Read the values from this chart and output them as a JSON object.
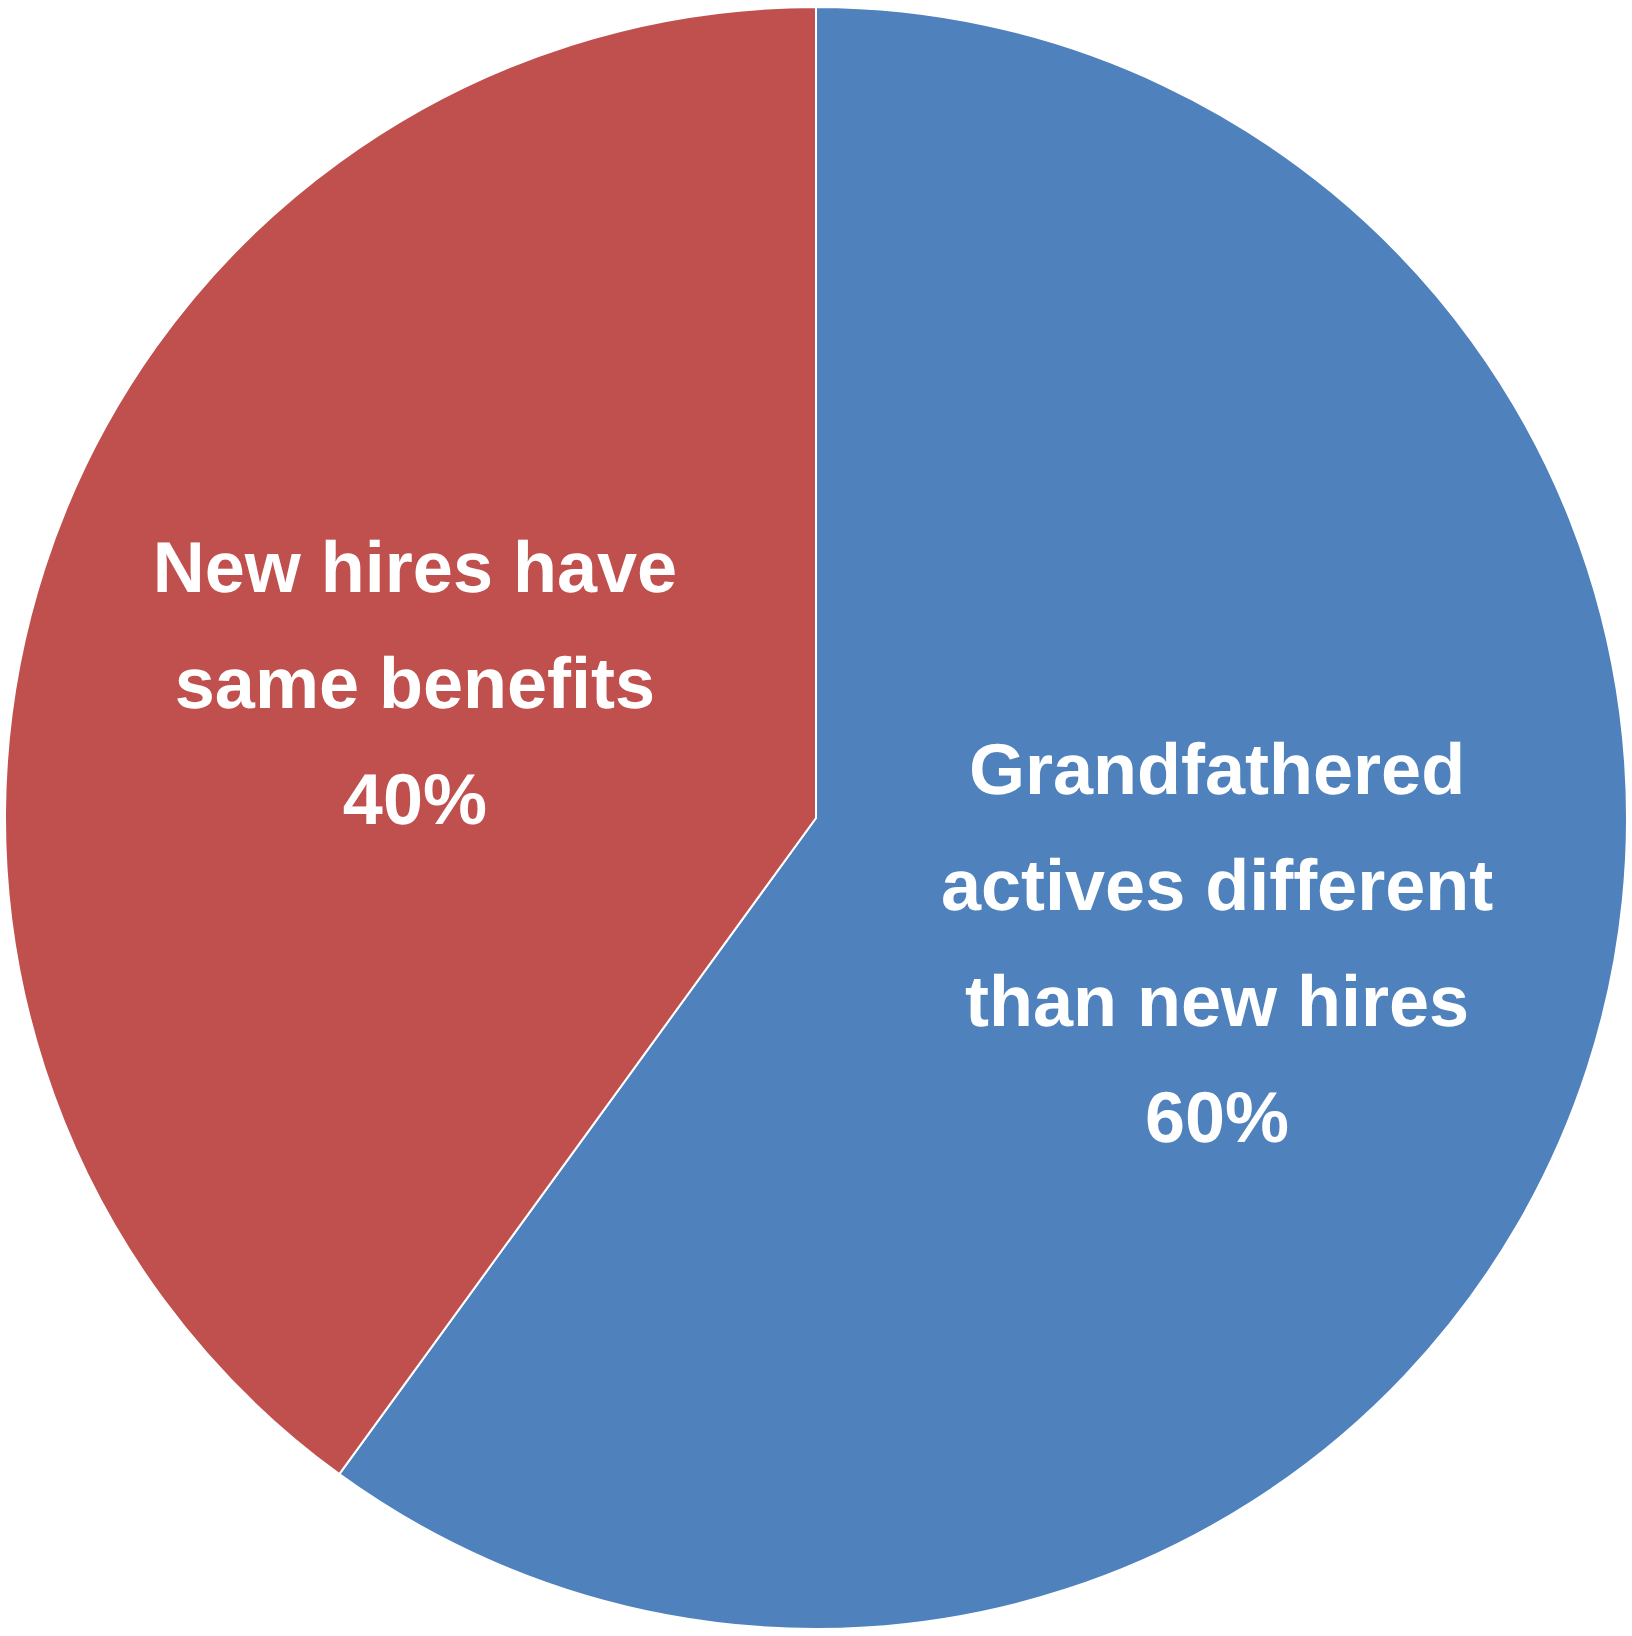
{
  "chart_data": {
    "type": "pie",
    "categories": [
      "Grandfathered actives different than new hires",
      "New hires have same benefits"
    ],
    "values": [
      60,
      40
    ],
    "colors": [
      "#4f81bd",
      "#c0504d"
    ],
    "value_labels": [
      "60%",
      "40%"
    ],
    "legend": false
  }
}
